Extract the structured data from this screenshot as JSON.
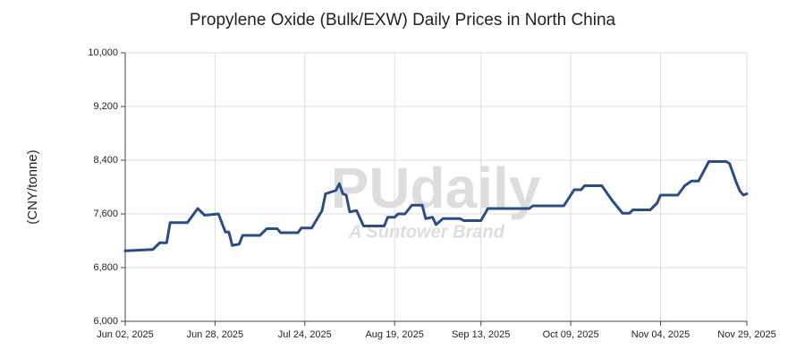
{
  "chart_data": {
    "type": "line",
    "title": "Propylene Oxide  (Bulk/EXW) Daily Prices in North China",
    "y_label": "(CNY/tonne)",
    "watermark": {
      "text": "PUdaily",
      "subtext": "A Suntower Brand"
    },
    "x": [
      "2025-06-02",
      "2025-06-10",
      "2025-06-12",
      "2025-06-14",
      "2025-06-15",
      "2025-06-20",
      "2025-06-23",
      "2025-06-25",
      "2025-06-29",
      "2025-07-01",
      "2025-07-02",
      "2025-07-03",
      "2025-07-05",
      "2025-07-06",
      "2025-07-11",
      "2025-07-13",
      "2025-07-16",
      "2025-07-17",
      "2025-07-22",
      "2025-07-23",
      "2025-07-26",
      "2025-07-29",
      "2025-07-30",
      "2025-08-02",
      "2025-08-03",
      "2025-08-04",
      "2025-08-05",
      "2025-08-06",
      "2025-08-08",
      "2025-08-10",
      "2025-08-16",
      "2025-08-17",
      "2025-08-19",
      "2025-08-20",
      "2025-08-22",
      "2025-08-24",
      "2025-08-27",
      "2025-08-28",
      "2025-08-30",
      "2025-08-31",
      "2025-09-02",
      "2025-09-07",
      "2025-09-08",
      "2025-09-13",
      "2025-09-15",
      "2025-09-27",
      "2025-09-28",
      "2025-10-07",
      "2025-10-10",
      "2025-10-12",
      "2025-10-13",
      "2025-10-18",
      "2025-10-21",
      "2025-10-24",
      "2025-10-26",
      "2025-10-27",
      "2025-11-01",
      "2025-11-03",
      "2025-11-04",
      "2025-11-09",
      "2025-11-11",
      "2025-11-13",
      "2025-11-15",
      "2025-11-18",
      "2025-11-23",
      "2025-11-24",
      "2025-11-26",
      "2025-11-27",
      "2025-11-28",
      "2025-11-29"
    ],
    "series": [
      {
        "color": "#2b4c85",
        "values": [
          7050,
          7070,
          7170,
          7170,
          7470,
          7470,
          7680,
          7580,
          7600,
          7330,
          7330,
          7130,
          7150,
          7280,
          7280,
          7380,
          7380,
          7320,
          7320,
          7390,
          7390,
          7650,
          7900,
          7950,
          8050,
          7900,
          7880,
          7630,
          7650,
          7420,
          7420,
          7550,
          7550,
          7600,
          7600,
          7730,
          7730,
          7530,
          7550,
          7440,
          7530,
          7530,
          7500,
          7500,
          7680,
          7680,
          7720,
          7720,
          7960,
          7960,
          8020,
          8020,
          7800,
          7610,
          7610,
          7660,
          7660,
          7760,
          7880,
          7880,
          8020,
          8090,
          8090,
          8380,
          8380,
          8350,
          8060,
          7940,
          7880,
          7900
        ]
      }
    ],
    "xlim": [
      "2025-06-02",
      "2025-11-29"
    ],
    "xticks": [
      {
        "value": "2025-06-02",
        "label": "Jun 02, 2025"
      },
      {
        "value": "2025-06-28",
        "label": "Jun 28, 2025"
      },
      {
        "value": "2025-07-24",
        "label": "Jul 24, 2025"
      },
      {
        "value": "2025-08-19",
        "label": "Aug 19, 2025"
      },
      {
        "value": "2025-09-13",
        "label": "Sep 13, 2025"
      },
      {
        "value": "2025-10-09",
        "label": "Oct 09, 2025"
      },
      {
        "value": "2025-11-04",
        "label": "Nov 04, 2025"
      },
      {
        "value": "2025-11-29",
        "label": "Nov 29, 2025"
      }
    ],
    "ylim": [
      6000,
      10000
    ],
    "yticks": [
      {
        "value": 6000,
        "label": "6,000"
      },
      {
        "value": 6800,
        "label": "6,800"
      },
      {
        "value": 7600,
        "label": "7,600"
      },
      {
        "value": 8400,
        "label": "8,400"
      },
      {
        "value": 9200,
        "label": "9,200"
      },
      {
        "value": 10000,
        "label": "10,000"
      }
    ],
    "grid": true
  }
}
